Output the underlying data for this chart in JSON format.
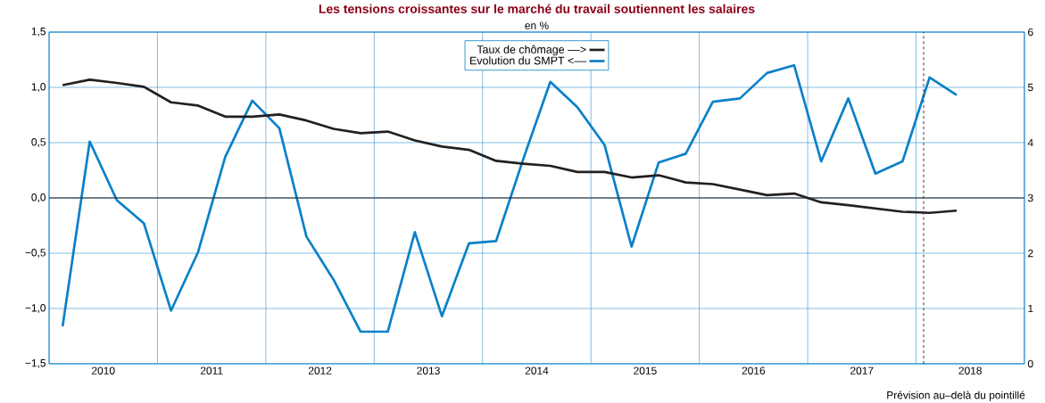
{
  "chart_data": {
    "type": "line",
    "title": "Les tensions croissantes sur le marché du travail soutiennent les salaires",
    "subtitle": "en %",
    "x": [
      2010.125,
      2010.375,
      2010.625,
      2010.875,
      2011.125,
      2011.375,
      2011.625,
      2011.875,
      2012.125,
      2012.375,
      2012.625,
      2012.875,
      2013.125,
      2013.375,
      2013.625,
      2013.875,
      2014.125,
      2014.375,
      2014.625,
      2014.875,
      2015.125,
      2015.375,
      2015.625,
      2015.875,
      2016.125,
      2016.375,
      2016.625,
      2016.875,
      2017.125,
      2017.375,
      2017.625,
      2017.875,
      2018.125,
      2018.375
    ],
    "series": [
      {
        "name": "Taux de chômage ––>",
        "color": "#231f20",
        "axis": "y2",
        "values": [
          5.04,
          5.14,
          5.08,
          5.01,
          4.73,
          4.67,
          4.47,
          4.47,
          4.51,
          4.4,
          4.25,
          4.17,
          4.2,
          4.04,
          3.93,
          3.87,
          3.67,
          3.62,
          3.58,
          3.47,
          3.47,
          3.37,
          3.41,
          3.28,
          3.25,
          3.15,
          3.05,
          3.08,
          2.92,
          2.87,
          2.81,
          2.75,
          2.73,
          2.77
        ]
      },
      {
        "name": "Evolution du SMPT <––",
        "color": "#0a80c8",
        "values": [
          -1.16,
          0.51,
          -0.02,
          -0.23,
          -1.02,
          -0.49,
          0.37,
          0.88,
          0.63,
          -0.35,
          -0.74,
          -1.21,
          -1.21,
          -0.31,
          -1.07,
          -0.41,
          -0.39,
          0.35,
          1.05,
          0.82,
          0.48,
          -0.44,
          0.32,
          0.4,
          0.87,
          0.9,
          1.13,
          1.2,
          0.33,
          0.9,
          0.22,
          0.33,
          1.09,
          0.93
        ]
      }
    ],
    "xlim": [
      2010,
      2019
    ],
    "xticks": [
      {
        "value": 2010.5,
        "label": "2010"
      },
      {
        "value": 2011,
        "label": null
      },
      {
        "value": 2011.5,
        "label": "2011"
      },
      {
        "value": 2012,
        "label": null
      },
      {
        "value": 2012.5,
        "label": "2012"
      },
      {
        "value": 2013,
        "label": null
      },
      {
        "value": 2013.5,
        "label": "2013"
      },
      {
        "value": 2014,
        "label": null
      },
      {
        "value": 2014.5,
        "label": "2014"
      },
      {
        "value": 2015,
        "label": null
      },
      {
        "value": 2015.5,
        "label": "2015"
      },
      {
        "value": 2016,
        "label": null
      },
      {
        "value": 2016.5,
        "label": "2016"
      },
      {
        "value": 2017,
        "label": null
      },
      {
        "value": 2017.5,
        "label": "2017"
      },
      {
        "value": 2018,
        "label": null
      },
      {
        "value": 2018.5,
        "label": "2018"
      }
    ],
    "ylim": [
      -1.5,
      1.5
    ],
    "yticks": [
      {
        "value": -1.5,
        "label": "−1,5"
      },
      {
        "value": -1,
        "label": "−1,0"
      },
      {
        "value": -0.5,
        "label": "−0,5"
      },
      {
        "value": 0,
        "label": "0,0"
      },
      {
        "value": 0.5,
        "label": "0,5"
      },
      {
        "value": 1,
        "label": "1,0"
      },
      {
        "value": 1.5,
        "label": "1,5"
      }
    ],
    "y2lim": [
      0,
      6
    ],
    "y2ticks": [
      0,
      1,
      2,
      3,
      4,
      5,
      6
    ],
    "ref_lines": [
      {
        "axis": "y",
        "value": 0,
        "color": "#231f20"
      },
      {
        "axis": "x",
        "value": 2018.07,
        "color": "#231f20",
        "line_style": "dashed"
      }
    ],
    "annotations": [
      "Prévision au–delà du pointillé"
    ],
    "grid": true,
    "legend": "top",
    "line_style": "solid",
    "marker": "none"
  }
}
